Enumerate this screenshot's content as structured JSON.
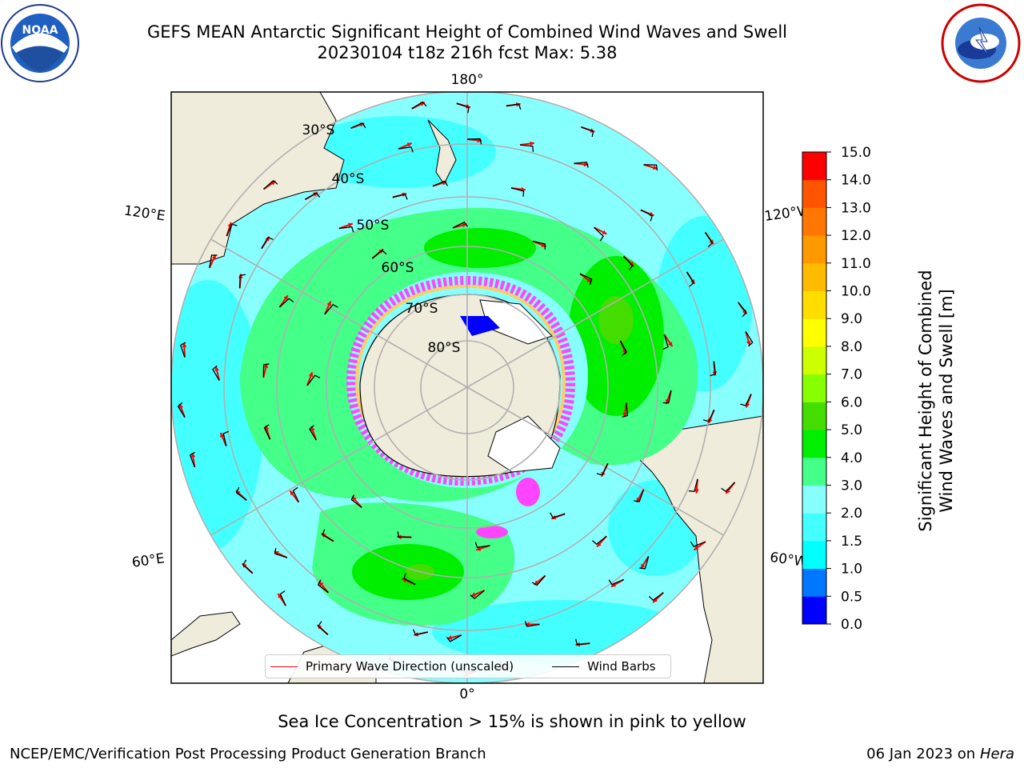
{
  "title": {
    "line1": "GEFS MEAN Antarctic Significant Height of Combined Wind Waves and Swell",
    "line2": "20230104 t18z 216h fcst   Max: 5.38"
  },
  "logos": {
    "left": {
      "text": "NOAA",
      "icon": "noaa-logo-icon",
      "ring_text": "NATIONAL OCEANIC AND ATMOSPHERIC ADMINISTRATION · U.S. DEPARTMENT OF COMMERCE"
    },
    "right": {
      "icon": "nws-logo-icon",
      "ring_text": "NATIONAL WEATHER SERVICE"
    }
  },
  "map": {
    "projection": "south-polar-stereographic",
    "longitude_labels": {
      "top": "180°",
      "bottom": "0°",
      "left_upper": "120°E",
      "left_lower": "60°E",
      "right_upper": "120°W",
      "right_lower": "60°W"
    },
    "latitude_labels": [
      "30°S",
      "40°S",
      "50°S",
      "60°S",
      "70°S",
      "80°S"
    ],
    "colors": {
      "land": "#efecdc",
      "ocean_low": "#88ffff",
      "ice_edge": "#ff44ff",
      "arrow": "#ff0000",
      "barb": "#000000",
      "grid": "#b0b0b0"
    }
  },
  "legend": {
    "wave_label": "Primary Wave Direction (unscaled)",
    "wind_label": "Wind Barbs"
  },
  "colorbar": {
    "label": "Significant Height of Combined Wind Waves and Swell [m]",
    "ticks": [
      "0.0",
      "0.5",
      "1.0",
      "1.5",
      "2.0",
      "3.0",
      "4.0",
      "5.0",
      "6.0",
      "7.0",
      "8.0",
      "9.0",
      "10.0",
      "11.0",
      "12.0",
      "13.0",
      "14.0",
      "15.0"
    ],
    "colors": [
      "#0000ff",
      "#0077ff",
      "#00ffff",
      "#44ffff",
      "#88ffff",
      "#44ff88",
      "#00ee00",
      "#44dd00",
      "#88ff00",
      "#ccff00",
      "#ffff00",
      "#ffdd00",
      "#ffbb00",
      "#ff9900",
      "#ff7700",
      "#ff5500",
      "#ff0000"
    ]
  },
  "footer": {
    "note": "Sea Ice Concentration > 15% is shown in pink to yellow",
    "left": "NCEP/EMC/Verification Post Processing Product Generation Branch",
    "date": "06 Jan 2023 on ",
    "host": "Hera"
  }
}
